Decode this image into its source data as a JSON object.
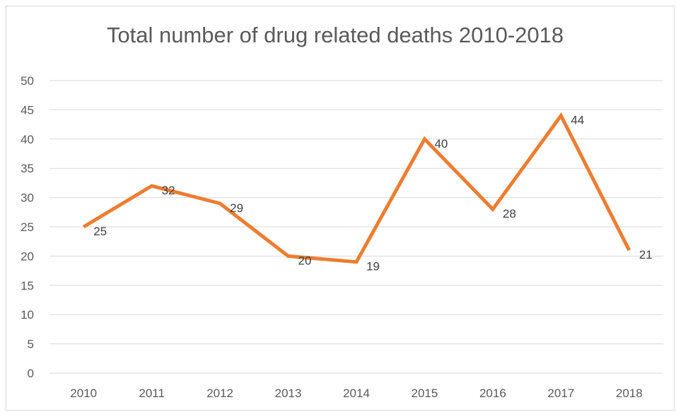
{
  "chart_data": {
    "type": "line",
    "title": "Total number of drug related deaths 2010-2018",
    "xlabel": "",
    "ylabel": "",
    "categories": [
      "2010",
      "2011",
      "2012",
      "2013",
      "2014",
      "2015",
      "2016",
      "2017",
      "2018"
    ],
    "series": [
      {
        "values": [
          25,
          32,
          29,
          20,
          19,
          40,
          28,
          44,
          21
        ],
        "color": "#ED7D31"
      }
    ],
    "ylim": [
      0,
      50
    ],
    "y_ticks": [
      "0",
      "5",
      "10",
      "15",
      "20",
      "25",
      "30",
      "35",
      "40",
      "45",
      "50"
    ],
    "data_labels": [
      "25",
      "32",
      "29",
      "20",
      "19",
      "40",
      "28",
      "44",
      "21"
    ],
    "grid": "horizontal",
    "legend": "none",
    "gridline_color": "#d9d9d9"
  }
}
